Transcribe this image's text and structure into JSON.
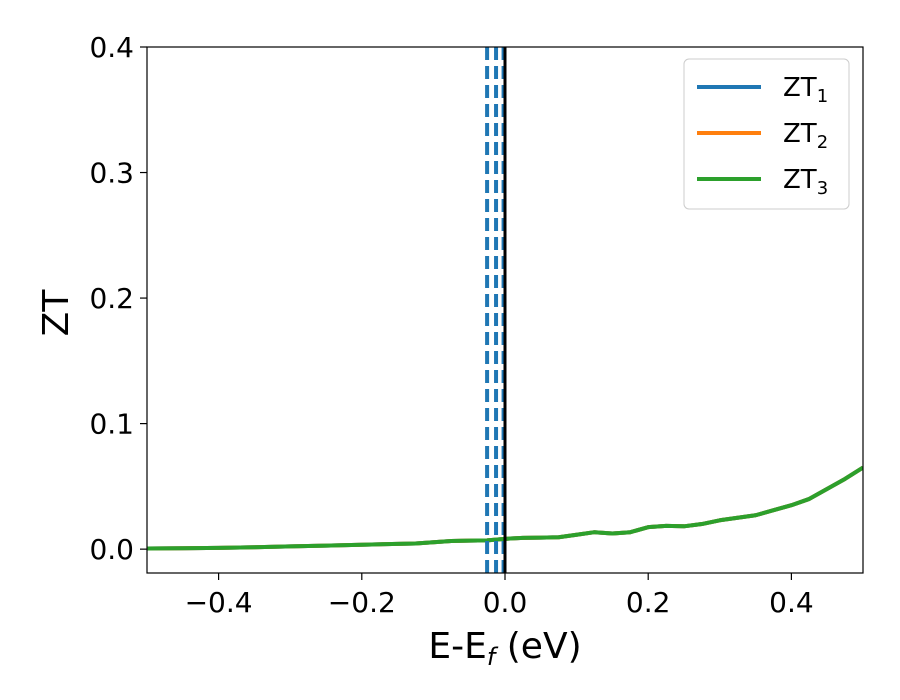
{
  "chart_data": {
    "type": "line",
    "xlabel": {
      "main": "E-E",
      "sub": "f",
      "unit": " (eV)"
    },
    "ylabel": "ZT",
    "xlim": [
      -0.5,
      0.5
    ],
    "ylim": [
      -0.019,
      0.4
    ],
    "x_ticks": [
      -0.4,
      -0.2,
      0.0,
      0.2,
      0.4
    ],
    "x_tick_labels": [
      "−0.4",
      "−0.2",
      "0.0",
      "0.2",
      "0.4"
    ],
    "y_ticks": [
      0.0,
      0.1,
      0.2,
      0.3,
      0.4
    ],
    "y_tick_labels": [
      "0.0",
      "0.1",
      "0.2",
      "0.3",
      "0.4"
    ],
    "grid": false,
    "legend_position": "top-right",
    "series": [
      {
        "name": "ZT",
        "subscript": "1",
        "color": "#1f77b4",
        "x": [
          -0.5,
          -0.45,
          -0.4,
          -0.35,
          -0.3,
          -0.25,
          -0.2,
          -0.15,
          -0.125,
          -0.1,
          -0.075,
          -0.05,
          -0.025,
          0.0,
          0.025,
          0.05,
          0.075,
          0.1,
          0.125,
          0.15,
          0.175,
          0.2,
          0.225,
          0.25,
          0.275,
          0.3,
          0.325,
          0.35,
          0.375,
          0.4,
          0.425,
          0.45,
          0.475,
          0.5
        ],
        "y": [
          0.0005,
          0.0007,
          0.001,
          0.0015,
          0.0022,
          0.0028,
          0.0035,
          0.0042,
          0.0045,
          0.0055,
          0.0065,
          0.0068,
          0.007,
          0.0082,
          0.009,
          0.0092,
          0.0095,
          0.0115,
          0.0135,
          0.0125,
          0.0135,
          0.0175,
          0.0185,
          0.0182,
          0.02,
          0.023,
          0.025,
          0.027,
          0.031,
          0.035,
          0.04,
          0.048,
          0.056,
          0.065
        ]
      },
      {
        "name": "ZT",
        "subscript": "2",
        "color": "#ff7f0e",
        "x": [
          -0.5,
          -0.45,
          -0.4,
          -0.35,
          -0.3,
          -0.25,
          -0.2,
          -0.15,
          -0.125,
          -0.1,
          -0.075,
          -0.05,
          -0.025,
          0.0,
          0.025,
          0.05,
          0.075,
          0.1,
          0.125,
          0.15,
          0.175,
          0.2,
          0.225,
          0.25,
          0.275,
          0.3,
          0.325,
          0.35,
          0.375,
          0.4,
          0.425,
          0.45,
          0.475,
          0.5
        ],
        "y": [
          0.0005,
          0.0007,
          0.001,
          0.0015,
          0.0022,
          0.0028,
          0.0035,
          0.0042,
          0.0045,
          0.0055,
          0.0065,
          0.0068,
          0.007,
          0.0082,
          0.009,
          0.0092,
          0.0095,
          0.0115,
          0.0135,
          0.0125,
          0.0135,
          0.0175,
          0.0185,
          0.0182,
          0.02,
          0.023,
          0.025,
          0.027,
          0.031,
          0.035,
          0.04,
          0.048,
          0.056,
          0.065
        ]
      },
      {
        "name": "ZT",
        "subscript": "3",
        "color": "#2ca02c",
        "x": [
          -0.5,
          -0.45,
          -0.4,
          -0.35,
          -0.3,
          -0.25,
          -0.2,
          -0.15,
          -0.125,
          -0.1,
          -0.075,
          -0.05,
          -0.025,
          0.0,
          0.025,
          0.05,
          0.075,
          0.1,
          0.125,
          0.15,
          0.175,
          0.2,
          0.225,
          0.25,
          0.275,
          0.3,
          0.325,
          0.35,
          0.375,
          0.4,
          0.425,
          0.45,
          0.475,
          0.5
        ],
        "y": [
          0.0005,
          0.0007,
          0.001,
          0.0015,
          0.0022,
          0.0028,
          0.0035,
          0.0042,
          0.0045,
          0.0055,
          0.0065,
          0.0068,
          0.007,
          0.0082,
          0.009,
          0.0092,
          0.0095,
          0.0115,
          0.0135,
          0.0125,
          0.0135,
          0.0175,
          0.0185,
          0.0182,
          0.02,
          0.023,
          0.025,
          0.027,
          0.031,
          0.035,
          0.04,
          0.048,
          0.056,
          0.065
        ]
      }
    ],
    "vertical_lines": [
      {
        "x": -0.025,
        "style": "dashed",
        "color": "#1f77b4"
      },
      {
        "x": -0.0125,
        "style": "dashed",
        "color": "#1f77b4"
      },
      {
        "x": -0.002,
        "style": "dashed",
        "color": "#1f77b4"
      },
      {
        "x": 0.0,
        "style": "solid",
        "color": "#000000"
      }
    ]
  }
}
